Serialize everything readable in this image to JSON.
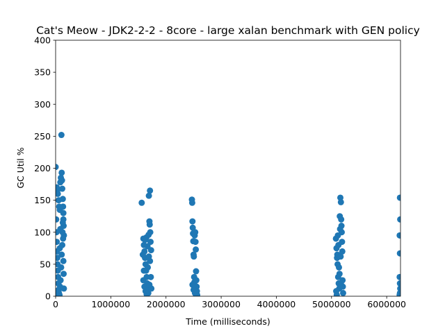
{
  "chart_data": {
    "type": "scatter",
    "title": "Cat's Meow - JDK2-2-2 - 8core -  large xalan benchmark with GEN policy",
    "xlabel": "Time (milliseconds)",
    "ylabel": "GC Util %",
    "xlim": [
      0,
      6250000
    ],
    "ylim": [
      0,
      400
    ],
    "xticks": [
      0,
      1000000,
      2000000,
      3000000,
      4000000,
      5000000,
      6000000
    ],
    "xtick_labels": [
      "0",
      "1000000",
      "2000000",
      "3000000",
      "4000000",
      "5000000",
      "6000000"
    ],
    "yticks": [
      0,
      50,
      100,
      150,
      200,
      250,
      300,
      350,
      400
    ],
    "ytick_labels": [
      "0",
      "50",
      "100",
      "150",
      "200",
      "250",
      "300",
      "350",
      "400"
    ],
    "grid": false,
    "marker_color": "#1f77b4",
    "points": [
      [
        0,
        202
      ],
      [
        20000,
        170
      ],
      [
        30000,
        165
      ],
      [
        40000,
        160
      ],
      [
        55000,
        150
      ],
      [
        65000,
        140
      ],
      [
        75000,
        135
      ],
      [
        85000,
        178
      ],
      [
        95000,
        185
      ],
      [
        110000,
        193
      ],
      [
        115000,
        181
      ],
      [
        105000,
        252
      ],
      [
        120000,
        168
      ],
      [
        130000,
        152
      ],
      [
        135000,
        140
      ],
      [
        140000,
        130
      ],
      [
        140000,
        120
      ],
      [
        145000,
        110
      ],
      [
        150000,
        95
      ],
      [
        10000,
        120
      ],
      [
        15000,
        100
      ],
      [
        20000,
        85
      ],
      [
        25000,
        70
      ],
      [
        30000,
        60
      ],
      [
        35000,
        50
      ],
      [
        40000,
        40
      ],
      [
        45000,
        30
      ],
      [
        50000,
        20
      ],
      [
        55000,
        10
      ],
      [
        60000,
        5
      ],
      [
        70000,
        2
      ],
      [
        80000,
        15
      ],
      [
        90000,
        25
      ],
      [
        100000,
        45
      ],
      [
        110000,
        65
      ],
      [
        120000,
        80
      ],
      [
        125000,
        100
      ],
      [
        130000,
        115
      ],
      [
        135000,
        90
      ],
      [
        140000,
        55
      ],
      [
        145000,
        35
      ],
      [
        150000,
        12
      ],
      [
        5000,
        8
      ],
      [
        10000,
        3
      ],
      [
        75000,
        75
      ],
      [
        85000,
        105
      ],
      [
        1560000,
        146
      ],
      [
        1590000,
        90
      ],
      [
        1600000,
        80
      ],
      [
        1610000,
        70
      ],
      [
        1620000,
        60
      ],
      [
        1630000,
        50
      ],
      [
        1640000,
        40
      ],
      [
        1650000,
        30
      ],
      [
        1660000,
        20
      ],
      [
        1670000,
        10
      ],
      [
        1680000,
        5
      ],
      [
        1690000,
        157
      ],
      [
        1710000,
        165
      ],
      [
        1700000,
        117
      ],
      [
        1705000,
        112
      ],
      [
        1715000,
        100
      ],
      [
        1720000,
        85
      ],
      [
        1730000,
        72
      ],
      [
        1590000,
        25
      ],
      [
        1610000,
        15
      ],
      [
        1630000,
        8
      ],
      [
        1650000,
        3
      ],
      [
        1670000,
        45
      ],
      [
        1690000,
        62
      ],
      [
        1710000,
        55
      ],
      [
        1725000,
        30
      ],
      [
        1735000,
        12
      ],
      [
        1580000,
        65
      ],
      [
        1600000,
        40
      ],
      [
        1620000,
        88
      ],
      [
        1645000,
        92
      ],
      [
        1665000,
        78
      ],
      [
        1685000,
        96
      ],
      [
        1700000,
        18
      ],
      [
        2470000,
        151
      ],
      [
        2475000,
        146
      ],
      [
        2480000,
        117
      ],
      [
        2485000,
        107
      ],
      [
        2490000,
        98
      ],
      [
        2495000,
        86
      ],
      [
        2500000,
        65
      ],
      [
        2505000,
        62
      ],
      [
        2510000,
        30
      ],
      [
        2515000,
        22
      ],
      [
        2520000,
        12
      ],
      [
        2525000,
        5
      ],
      [
        2530000,
        100
      ],
      [
        2535000,
        85
      ],
      [
        2540000,
        73
      ],
      [
        2545000,
        39
      ],
      [
        2550000,
        25
      ],
      [
        2555000,
        15
      ],
      [
        2560000,
        8
      ],
      [
        2565000,
        2
      ],
      [
        2480000,
        18
      ],
      [
        2500000,
        10
      ],
      [
        2520000,
        95
      ],
      [
        2540000,
        3
      ],
      [
        5080000,
        90
      ],
      [
        5090000,
        75
      ],
      [
        5100000,
        60
      ],
      [
        5110000,
        50
      ],
      [
        5120000,
        30
      ],
      [
        5130000,
        20
      ],
      [
        5140000,
        12
      ],
      [
        5150000,
        125
      ],
      [
        5160000,
        154
      ],
      [
        5170000,
        147
      ],
      [
        5175000,
        120
      ],
      [
        5180000,
        110
      ],
      [
        5185000,
        100
      ],
      [
        5190000,
        85
      ],
      [
        5195000,
        70
      ],
      [
        5200000,
        25
      ],
      [
        5205000,
        15
      ],
      [
        5210000,
        5
      ],
      [
        5085000,
        8
      ],
      [
        5095000,
        2
      ],
      [
        5105000,
        65
      ],
      [
        5115000,
        95
      ],
      [
        5125000,
        80
      ],
      [
        5135000,
        45
      ],
      [
        5145000,
        35
      ],
      [
        5155000,
        105
      ],
      [
        5165000,
        62
      ],
      [
        5175000,
        18
      ],
      [
        6240000,
        154
      ],
      [
        6245000,
        120
      ],
      [
        6235000,
        95
      ],
      [
        6240000,
        67
      ],
      [
        6235000,
        30
      ],
      [
        6240000,
        20
      ],
      [
        6245000,
        12
      ],
      [
        6240000,
        5
      ],
      [
        6235000,
        2
      ]
    ]
  }
}
